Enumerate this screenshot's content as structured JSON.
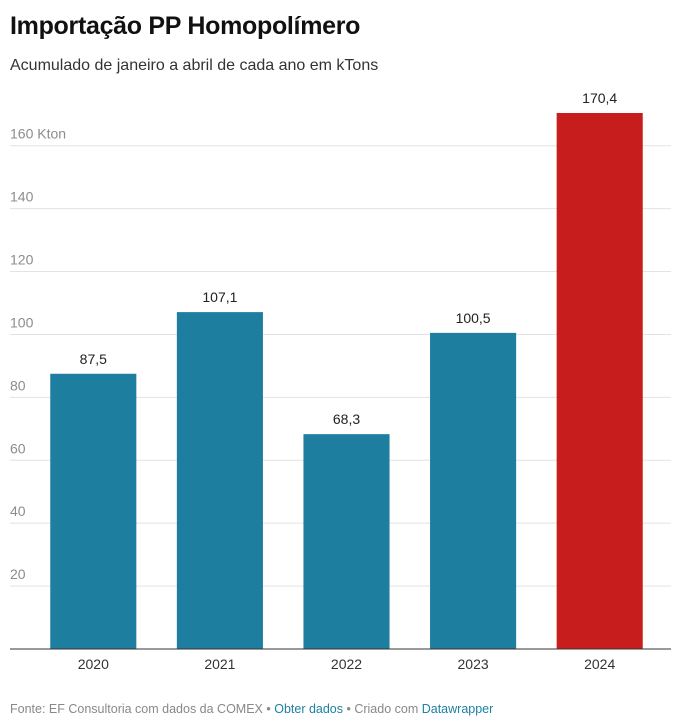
{
  "chart_data": {
    "type": "bar",
    "title": "Importação PP Homopolímero",
    "subtitle": "Acumulado de janeiro a abril de cada ano em kTons",
    "categories": [
      "2020",
      "2021",
      "2022",
      "2023",
      "2024"
    ],
    "values": [
      87.5,
      107.1,
      68.3,
      100.5,
      170.4
    ],
    "value_labels": [
      "87,5",
      "107,1",
      "68,3",
      "100,5",
      "170,4"
    ],
    "bar_colors": [
      "#1d7ea0",
      "#1d7ea0",
      "#1d7ea0",
      "#1d7ea0",
      "#c81d1d"
    ],
    "y_ticks": [
      20,
      40,
      60,
      80,
      100,
      120,
      140,
      160
    ],
    "y_tick_labels": [
      "20",
      "40",
      "60",
      "80",
      "100",
      "120",
      "140",
      "160 Kton"
    ],
    "ylim": [
      0,
      170.4
    ],
    "grid": true,
    "xlabel": "",
    "ylabel": ""
  },
  "footer": {
    "source": "Fonte: EF Consultoria com dados da COMEX",
    "sep1": " • ",
    "get_data": "Obter dados",
    "sep2": " • Criado com ",
    "tool": "Datawrapper"
  }
}
